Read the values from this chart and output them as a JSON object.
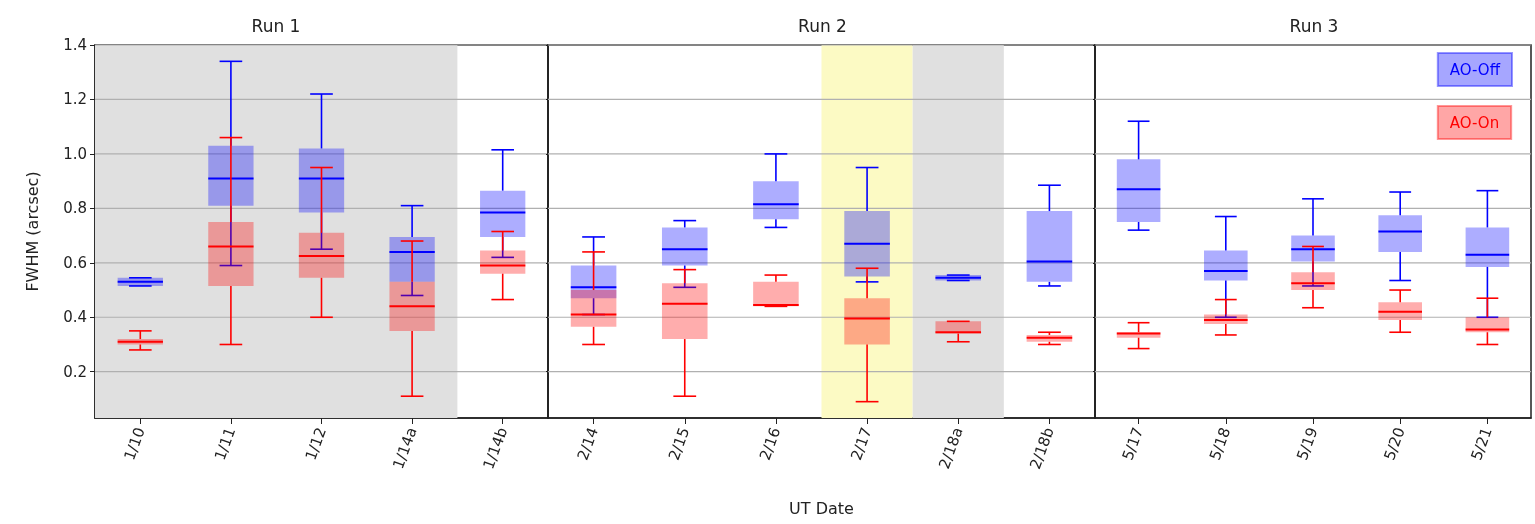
{
  "chart_data": [
    {
      "type": "box",
      "title": "Run 1",
      "ylabel": "FWHM (arcsec)",
      "categories": [
        "1/10",
        "1/11",
        "1/12",
        "1/14a",
        "1/14b"
      ],
      "ylim": [
        0.03,
        1.4
      ],
      "yticks": [
        0.2,
        0.4,
        0.6,
        0.8,
        {
          "value": 1,
          "label": "1.0"
        },
        1.2,
        1.4
      ],
      "grid": "y",
      "bands": [
        {
          "axis": "x",
          "from": "1/10",
          "to": "1/14a",
          "color": "#e0e0e0"
        }
      ],
      "series": [
        {
          "color": "#0000ff",
          "boxes": [
            {
              "low": 0.515,
              "q1": 0.515,
              "median": 0.53,
              "q3": 0.545,
              "high": 0.545
            },
            {
              "low": 0.59,
              "q1": 0.81,
              "median": 0.91,
              "q3": 1.03,
              "high": 1.34
            },
            {
              "low": 0.65,
              "q1": 0.785,
              "median": 0.91,
              "q3": 1.02,
              "high": 1.22
            },
            {
              "low": 0.48,
              "q1": 0.53,
              "median": 0.64,
              "q3": 0.695,
              "high": 0.81
            },
            {
              "low": 0.62,
              "q1": 0.695,
              "median": 0.785,
              "q3": 0.865,
              "high": 1.015
            }
          ]
        },
        {
          "color": "#ff0000",
          "boxes": [
            {
              "low": 0.28,
              "q1": 0.3,
              "median": 0.31,
              "q3": 0.32,
              "high": 0.35
            },
            {
              "low": 0.3,
              "q1": 0.515,
              "median": 0.66,
              "q3": 0.75,
              "high": 1.06
            },
            {
              "low": 0.4,
              "q1": 0.545,
              "median": 0.625,
              "q3": 0.71,
              "high": 0.95
            },
            {
              "low": 0.11,
              "q1": 0.35,
              "median": 0.44,
              "q3": 0.53,
              "high": 0.68
            },
            {
              "low": 0.465,
              "q1": 0.56,
              "median": 0.59,
              "q3": 0.645,
              "high": 0.715
            }
          ]
        }
      ]
    },
    {
      "type": "box",
      "title": "Run 2",
      "xlabel": "UT Date",
      "categories": [
        "2/14",
        "2/15",
        "2/16",
        "2/17",
        "2/18a",
        "2/18b"
      ],
      "ylim": [
        0.03,
        1.4
      ],
      "yticks": [
        0.2,
        0.4,
        0.6,
        0.8,
        1,
        1.2,
        1.4
      ],
      "grid": "y",
      "tick_labels": "x",
      "bands": [
        {
          "axis": "x",
          "from": "2/17",
          "to": "2/17",
          "color": "#fcfac4"
        },
        {
          "axis": "x",
          "from": "2/18a",
          "to": "2/18a",
          "color": "#e0e0e0"
        }
      ],
      "series": [
        {
          "color": "#0000ff",
          "boxes": [
            {
              "low": 0.41,
              "q1": 0.47,
              "median": 0.51,
              "q3": 0.59,
              "high": 0.695
            },
            {
              "low": 0.51,
              "q1": 0.59,
              "median": 0.65,
              "q3": 0.73,
              "high": 0.755
            },
            {
              "low": 0.73,
              "q1": 0.76,
              "median": 0.815,
              "q3": 0.9,
              "high": 1.0
            },
            {
              "low": 0.53,
              "q1": 0.55,
              "median": 0.67,
              "q3": 0.79,
              "high": 0.95
            },
            {
              "low": 0.535,
              "q1": 0.535,
              "median": 0.545,
              "q3": 0.555,
              "high": 0.555
            },
            {
              "low": 0.515,
              "q1": 0.53,
              "median": 0.605,
              "q3": 0.79,
              "high": 0.885
            }
          ]
        },
        {
          "color": "#ff0000",
          "boxes": [
            {
              "low": 0.3,
              "q1": 0.365,
              "median": 0.41,
              "q3": 0.5,
              "high": 0.64
            },
            {
              "low": 0.11,
              "q1": 0.32,
              "median": 0.45,
              "q3": 0.525,
              "high": 0.575
            },
            {
              "low": 0.44,
              "q1": 0.44,
              "median": 0.445,
              "q3": 0.53,
              "high": 0.555
            },
            {
              "low": 0.09,
              "q1": 0.3,
              "median": 0.395,
              "q3": 0.47,
              "high": 0.58
            },
            {
              "low": 0.31,
              "q1": 0.34,
              "median": 0.345,
              "q3": 0.385,
              "high": 0.385
            },
            {
              "low": 0.3,
              "q1": 0.31,
              "median": 0.325,
              "q3": 0.335,
              "high": 0.345
            }
          ]
        }
      ]
    },
    {
      "type": "box",
      "title": "Run 3",
      "categories": [
        "5/17",
        "5/18",
        "5/19",
        "5/20",
        "5/21"
      ],
      "ylim": [
        0.03,
        1.4
      ],
      "yticks": [
        0.2,
        0.4,
        0.6,
        0.8,
        1,
        1.2,
        1.4
      ],
      "grid": "y",
      "tick_labels": "x",
      "legend": "top right",
      "series": [
        {
          "name": "AO-Off",
          "color": "#0000ff",
          "boxes": [
            {
              "low": 0.72,
              "q1": 0.75,
              "median": 0.87,
              "q3": 0.98,
              "high": 1.12
            },
            {
              "low": 0.4,
              "q1": 0.535,
              "median": 0.57,
              "q3": 0.645,
              "high": 0.77
            },
            {
              "low": 0.515,
              "q1": 0.605,
              "median": 0.65,
              "q3": 0.7,
              "high": 0.835
            },
            {
              "low": 0.535,
              "q1": 0.64,
              "median": 0.715,
              "q3": 0.775,
              "high": 0.86
            },
            {
              "low": 0.4,
              "q1": 0.585,
              "median": 0.63,
              "q3": 0.73,
              "high": 0.865
            }
          ]
        },
        {
          "name": "AO-On",
          "color": "#ff0000",
          "boxes": [
            {
              "low": 0.285,
              "q1": 0.325,
              "median": 0.34,
              "q3": 0.345,
              "high": 0.38
            },
            {
              "low": 0.335,
              "q1": 0.375,
              "median": 0.39,
              "q3": 0.41,
              "high": 0.465
            },
            {
              "low": 0.435,
              "q1": 0.5,
              "median": 0.525,
              "q3": 0.565,
              "high": 0.66
            },
            {
              "low": 0.345,
              "q1": 0.39,
              "median": 0.42,
              "q3": 0.455,
              "high": 0.5
            },
            {
              "low": 0.3,
              "q1": 0.345,
              "median": 0.355,
              "q3": 0.4,
              "high": 0.47
            }
          ]
        }
      ]
    }
  ]
}
